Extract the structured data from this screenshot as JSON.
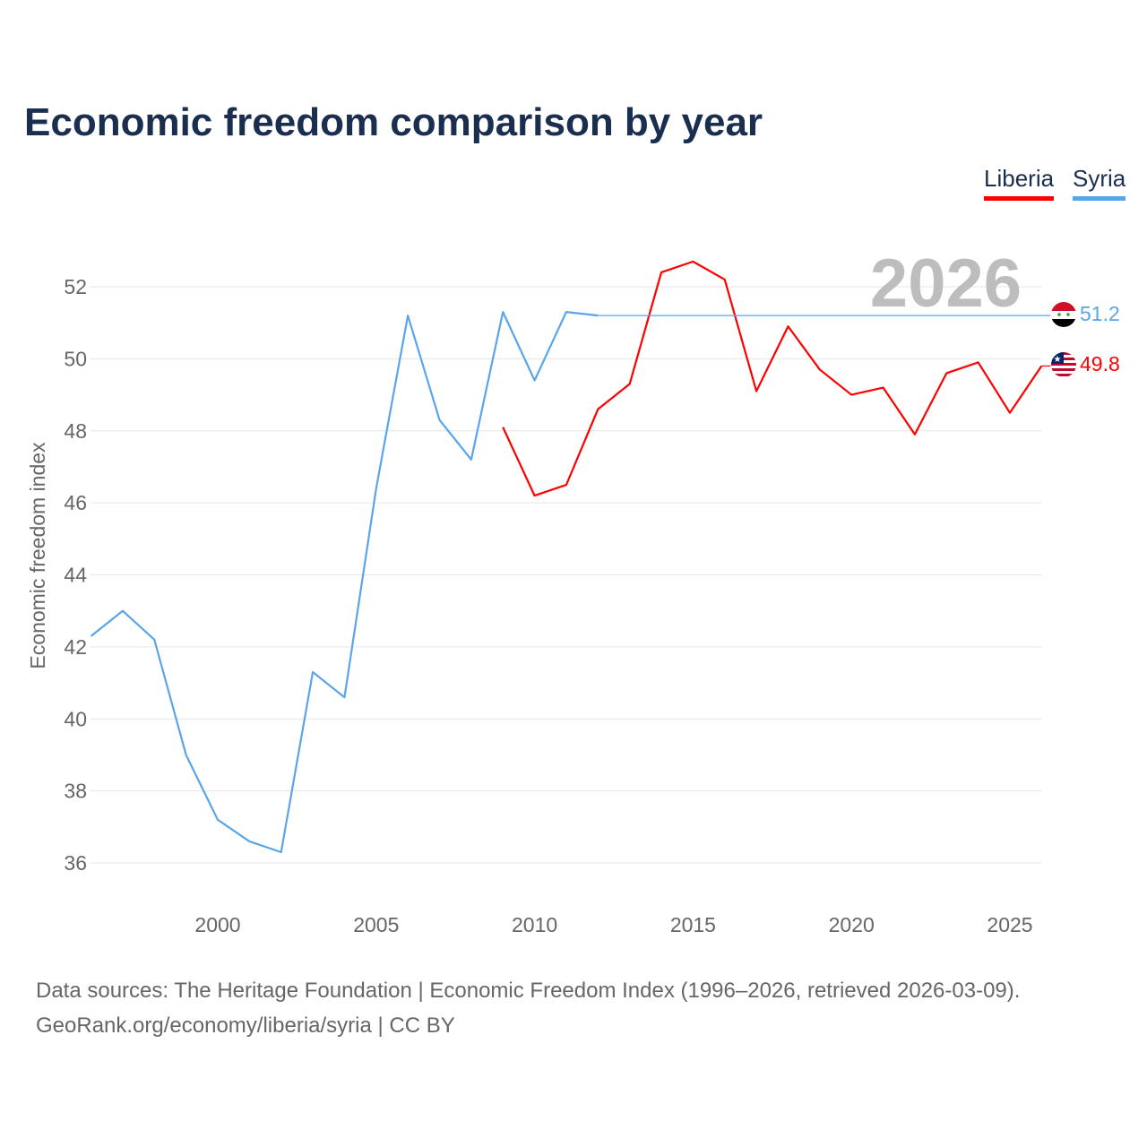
{
  "title": "Economic freedom comparison by year",
  "footer": {
    "line1": "Data sources: The Heritage Foundation | Economic Freedom Index (1996–2026, retrieved 2026-03-09).",
    "line2": "GeoRank.org/economy/liberia/syria | CC BY"
  },
  "chart_data": {
    "type": "line",
    "title": "Economic freedom comparison by year",
    "xlabel": "",
    "ylabel": "Economic freedom index",
    "xlim": [
      1996,
      2026
    ],
    "ylim": [
      35,
      53.5
    ],
    "xticks": [
      2000,
      2005,
      2010,
      2015,
      2020,
      2025
    ],
    "yticks": [
      36,
      38,
      40,
      42,
      44,
      46,
      48,
      50,
      52
    ],
    "grid": true,
    "legend_position": "top-right",
    "annotation": "2026",
    "series": [
      {
        "name": "Liberia",
        "color": "#ff0000",
        "flag": "liberia-flag",
        "last_label": "49.8",
        "x": [
          2009,
          2010,
          2011,
          2012,
          2013,
          2014,
          2015,
          2016,
          2017,
          2018,
          2019,
          2020,
          2021,
          2022,
          2023,
          2024,
          2025,
          2026
        ],
        "values": [
          48.1,
          46.2,
          46.5,
          48.6,
          49.3,
          52.4,
          52.7,
          52.2,
          49.1,
          50.9,
          49.7,
          49.0,
          49.2,
          47.9,
          49.6,
          49.9,
          48.5,
          49.8
        ]
      },
      {
        "name": "Syria",
        "color": "#5aa5ea",
        "flag": "syria-flag",
        "last_label": "51.2",
        "carried_forward_to": 2026,
        "x": [
          1996,
          1997,
          1998,
          1999,
          2000,
          2001,
          2002,
          2003,
          2004,
          2005,
          2006,
          2007,
          2008,
          2009,
          2010,
          2011,
          2012
        ],
        "values": [
          42.3,
          43.0,
          42.2,
          39.0,
          37.2,
          36.6,
          36.3,
          41.3,
          40.6,
          46.4,
          51.2,
          48.3,
          47.2,
          51.3,
          49.4,
          51.3,
          51.2
        ]
      }
    ]
  }
}
